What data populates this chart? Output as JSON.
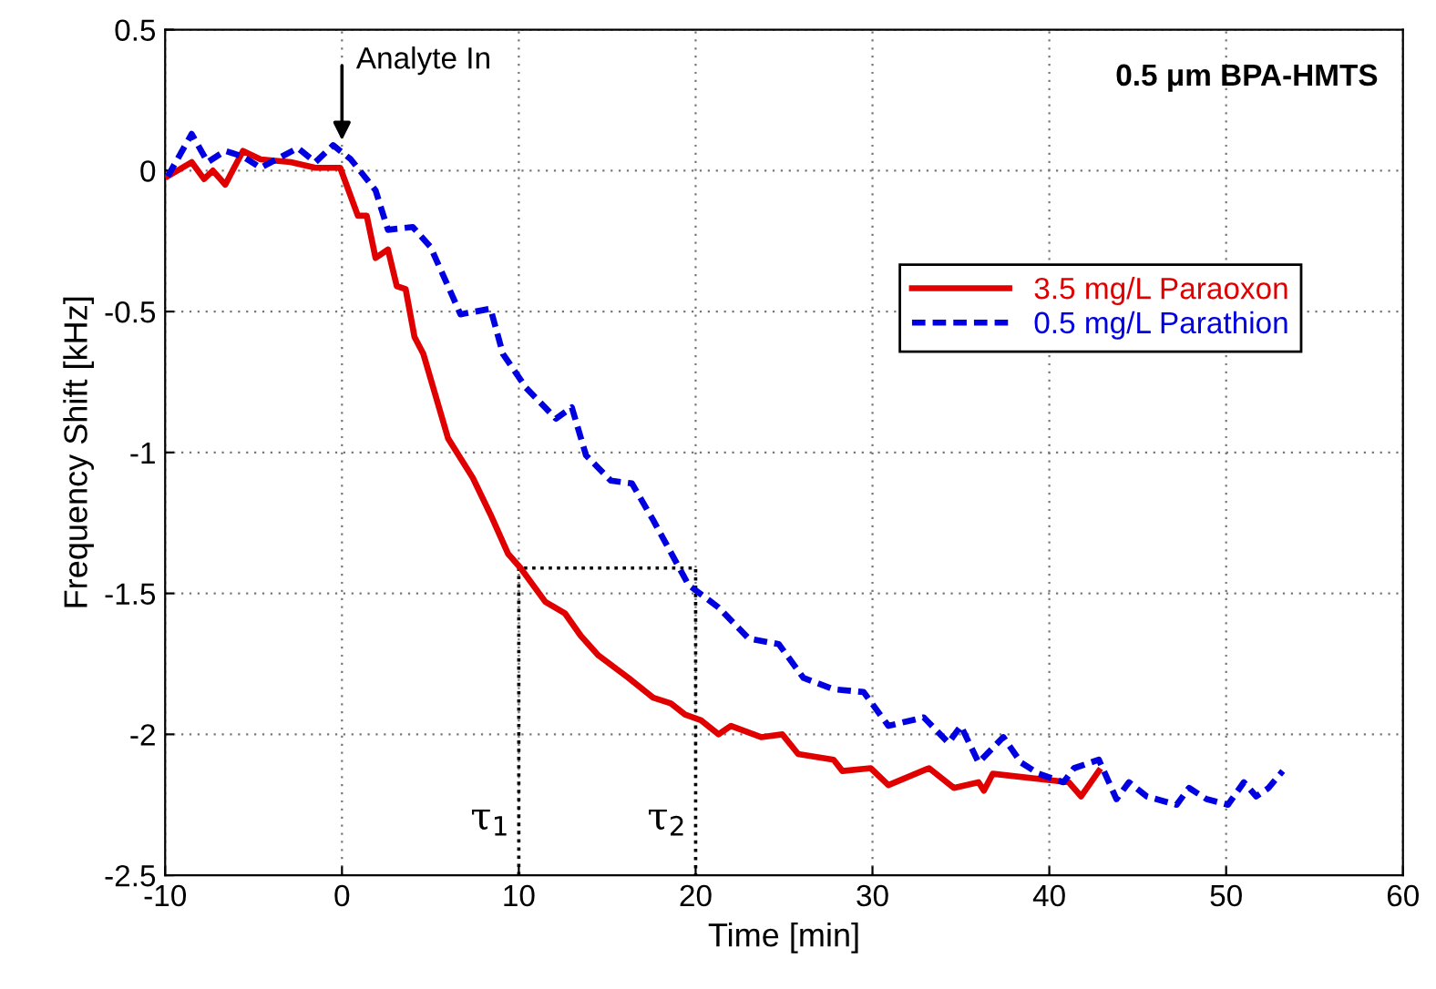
{
  "chart_data": {
    "type": "line",
    "xlabel": "Time [min]",
    "ylabel": "Frequency Shift [kHz]",
    "xlim": [
      -10,
      60
    ],
    "ylim": [
      -2.5,
      0.5
    ],
    "xticks": [
      -10,
      0,
      10,
      20,
      30,
      40,
      50,
      60
    ],
    "yticks": [
      -2.5,
      -2,
      -1.5,
      -1,
      -0.5,
      0,
      0.5
    ],
    "grid": true,
    "legend": "top right",
    "series": [
      {
        "name": "3.5 mg/L Paraoxon",
        "color": "#e00000",
        "line_style": "solid",
        "x": [
          -9.85,
          -8.5,
          -7.8,
          -7.3,
          -6.6,
          -5.6,
          -4.6,
          -2.9,
          -1.5,
          -0.1,
          0.9,
          1.4,
          1.9,
          2.6,
          3.1,
          3.6,
          4.1,
          4.6,
          6.0,
          7.4,
          8.4,
          9.4,
          10.1,
          11.5,
          12.6,
          13.5,
          14.5,
          16.2,
          17.6,
          18.6,
          19.4,
          20.3,
          21.3,
          22.0,
          23.7,
          24.9,
          25.8,
          27.8,
          28.3,
          29.9,
          30.9,
          33.2,
          34.6,
          36.0,
          36.3,
          36.8,
          41.1,
          41.8,
          42.8
        ],
        "values": [
          -0.02,
          0.03,
          -0.03,
          0,
          -0.05,
          0.07,
          0.04,
          0.03,
          0.01,
          0.01,
          -0.16,
          -0.16,
          -0.31,
          -0.28,
          -0.41,
          -0.42,
          -0.59,
          -0.65,
          -0.95,
          -1.09,
          -1.22,
          -1.36,
          -1.41,
          -1.53,
          -1.57,
          -1.65,
          -1.72,
          -1.8,
          -1.87,
          -1.89,
          -1.93,
          -1.95,
          -2.0,
          -1.97,
          -2.01,
          -2.0,
          -2.07,
          -2.09,
          -2.13,
          -2.12,
          -2.18,
          -2.12,
          -2.19,
          -2.17,
          -2.2,
          -2.14,
          -2.17,
          -2.22,
          -2.13
        ]
      },
      {
        "name": "0.5 mg/L Parathion",
        "color": "#0000e0",
        "line_style": "dashed",
        "x": [
          -9.85,
          -8.5,
          -7.6,
          -6.6,
          -5.6,
          -4.6,
          -2.5,
          -1.5,
          -0.5,
          0.5,
          1.9,
          2.6,
          4.0,
          5.0,
          6.0,
          6.7,
          8.4,
          9.1,
          10.4,
          12.1,
          13.0,
          13.8,
          15.2,
          16.4,
          17.6,
          19.6,
          21.3,
          23.0,
          24.7,
          26.1,
          27.8,
          29.5,
          30.9,
          32.9,
          34.3,
          35.0,
          36.0,
          37.4,
          38.4,
          39.4,
          40.8,
          41.4,
          42.8,
          43.8,
          44.5,
          45.5,
          47.2,
          47.9,
          48.9,
          50.1,
          51.0,
          51.7,
          52.4,
          53.2
        ],
        "values": [
          -0.02,
          0.13,
          0.03,
          0.07,
          0.05,
          0.01,
          0.08,
          0.03,
          0.09,
          0.04,
          -0.07,
          -0.21,
          -0.2,
          -0.27,
          -0.41,
          -0.51,
          -0.49,
          -0.65,
          -0.77,
          -0.88,
          -0.84,
          -1.01,
          -1.1,
          -1.11,
          -1.24,
          -1.47,
          -1.55,
          -1.66,
          -1.68,
          -1.8,
          -1.84,
          -1.85,
          -1.97,
          -1.94,
          -2.03,
          -1.97,
          -2.1,
          -2.01,
          -2.1,
          -2.14,
          -2.17,
          -2.12,
          -2.09,
          -2.23,
          -2.17,
          -2.22,
          -2.25,
          -2.19,
          -2.23,
          -2.25,
          -2.17,
          -2.22,
          -2.19,
          -2.13
        ]
      },
      {
        "color": "#000000",
        "line_style": "dotted",
        "x": [
          10,
          10,
          20,
          20
        ],
        "values": [
          -2.5,
          -1.41,
          -1.41,
          -2.5
        ]
      }
    ],
    "annotations": [
      {
        "text": "Analyte In",
        "x": 0,
        "y": 0.09
      },
      "0.5 μm BPA-HMTS",
      {
        "text": "τ$_{1}$",
        "x": 10,
        "y": -2.3
      },
      {
        "text": "τ$_{2}$",
        "x": 20,
        "y": -2.3
      }
    ]
  }
}
